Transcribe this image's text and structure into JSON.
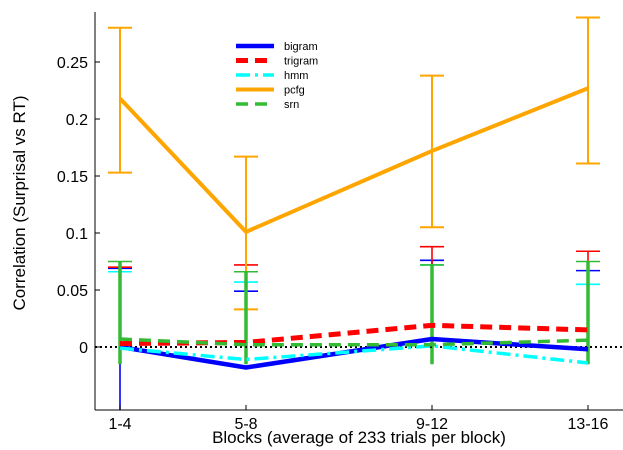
{
  "chart_data": {
    "type": "line",
    "title": "",
    "xlabel": "Blocks (average of 233 trials per block)",
    "ylabel": "Correlation (Surprisal vs RT)",
    "categories": [
      "1-4",
      "5-8",
      "9-12",
      "13-16"
    ],
    "ylim": [
      -0.015,
      0.29
    ],
    "yticks": [
      0,
      0.05,
      0.1,
      0.15,
      0.2,
      0.25
    ],
    "ytick_labels": [
      "0",
      "0.05",
      "0.1",
      "0.15",
      "0.2",
      "0.25"
    ],
    "grid": false,
    "legend_position": "top-center",
    "reference_line": {
      "y": 0,
      "style": "dotted",
      "color": "#000000"
    },
    "series": [
      {
        "name": "bigram",
        "color": "#0000ff",
        "dash": "solid",
        "values": [
          0.0,
          -0.018,
          0.007,
          -0.002
        ],
        "err_upper": [
          0.069,
          0.049,
          0.076,
          0.067
        ],
        "err_lower": [
          -0.0585,
          -0.015,
          -0.015,
          -0.015
        ]
      },
      {
        "name": "trigram",
        "color": "#ff0000",
        "dash": "dashed",
        "values": [
          0.003,
          0.004,
          0.019,
          0.015
        ],
        "err_upper": [
          0.07,
          0.072,
          0.088,
          0.084
        ],
        "err_lower": [
          -0.015,
          -0.015,
          -0.015,
          -0.015
        ]
      },
      {
        "name": "hmm",
        "color": "#00ffff",
        "dash": "dashdot",
        "values": [
          -0.001,
          -0.011,
          0.001,
          -0.014
        ],
        "err_upper": [
          0.066,
          0.057,
          0.072,
          0.055
        ],
        "err_lower": [
          -0.015,
          -0.015,
          -0.015,
          -0.015
        ]
      },
      {
        "name": "pcfg",
        "color": "#ffa500",
        "dash": "solid",
        "values": [
          0.218,
          0.101,
          0.172,
          0.227
        ],
        "err_upper": [
          0.28,
          0.167,
          0.238,
          0.289
        ],
        "err_lower": [
          0.153,
          0.033,
          0.105,
          0.161
        ]
      },
      {
        "name": "srn",
        "color": "#33bb33",
        "dash": "dashed",
        "values": [
          0.007,
          0.002,
          0.002,
          0.006
        ],
        "err_upper": [
          0.075,
          0.066,
          0.072,
          0.075
        ],
        "err_lower": [
          -0.015,
          -0.015,
          -0.015,
          -0.015
        ]
      }
    ]
  }
}
